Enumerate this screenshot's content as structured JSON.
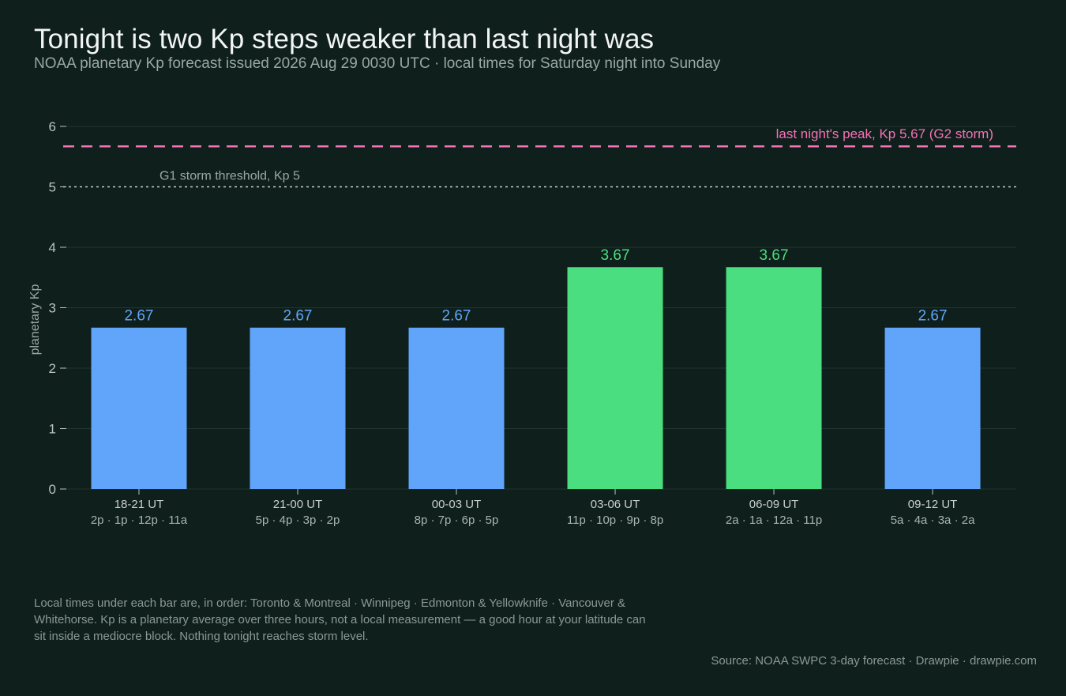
{
  "title": "Tonight is two Kp steps weaker than last night was",
  "subtitle": "NOAA planetary Kp forecast issued 2026 Aug 29 0030 UTC  ·  local times for Saturday night into Sunday",
  "footnote": "Local times under each bar are, in order: Toronto & Montreal · Winnipeg · Edmonton & Yellowknife · Vancouver & Whitehorse. Kp is a planetary average over three hours, not a local measurement — a good hour at your latitude can sit inside a mediocre block. Nothing tonight reaches storm level.",
  "source": "Source: NOAA SWPC 3-day forecast  ·  Drawpie · drawpie.com",
  "colors": {
    "background": "#0f1f1b",
    "below_storm_bar": "#60a5fa",
    "higher_bar": "#4ade80",
    "last_night_line": "#f472b6",
    "threshold_line": "#c8d0cd",
    "gridline": "#223530",
    "tick_text": "#b9c4c0"
  },
  "chart_data": {
    "type": "bar",
    "ylabel": "planetary Kp",
    "xlabel": "",
    "ylim": [
      0,
      6
    ],
    "yticks": [
      0,
      1,
      2,
      3,
      4,
      5,
      6
    ],
    "grid": true,
    "categories": [
      "18-21 UT",
      "21-00 UT",
      "00-03 UT",
      "03-06 UT",
      "06-09 UT",
      "09-12 UT"
    ],
    "local_times": [
      "2p · 1p · 12p · 11a",
      "5p · 4p · 3p · 2p",
      "8p · 7p · 6p · 5p",
      "11p · 10p · 9p · 8p",
      "2a · 1a · 12a · 11p",
      "5a · 4a · 3a · 2a"
    ],
    "values": [
      2.67,
      2.67,
      2.67,
      3.67,
      3.67,
      2.67
    ],
    "value_labels": [
      "2.67",
      "2.67",
      "2.67",
      "3.67",
      "3.67",
      "2.67"
    ],
    "bar_colors": [
      "#60a5fa",
      "#60a5fa",
      "#60a5fa",
      "#4ade80",
      "#4ade80",
      "#60a5fa"
    ],
    "reference_lines": [
      {
        "value": 5.67,
        "label": "last night's peak, Kp 5.67 (G2 storm)",
        "style": "dashed",
        "color": "#f472b6"
      },
      {
        "value": 5,
        "label": "G1 storm threshold, Kp 5",
        "style": "dotted",
        "color": "#c8d0cd"
      }
    ]
  }
}
